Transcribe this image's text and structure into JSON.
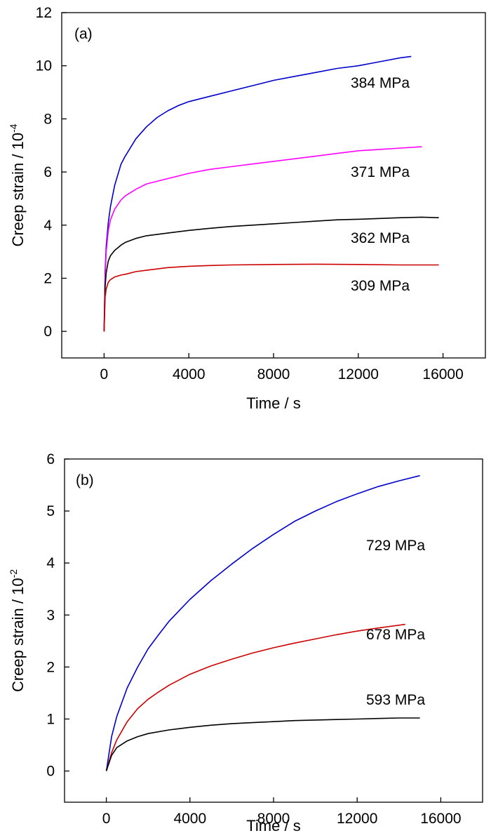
{
  "chart_data": [
    {
      "type": "line",
      "panel_label": "(a)",
      "xlabel": "Time / s",
      "ylabel": "Creep strain / 10",
      "ylabel_exponent": "-4",
      "xlim": [
        -2000,
        18000
      ],
      "ylim": [
        -1,
        12
      ],
      "xticks": [
        0,
        4000,
        8000,
        12000,
        16000
      ],
      "yticks": [
        0,
        2,
        4,
        6,
        8,
        10,
        12
      ],
      "grid": false,
      "series": [
        {
          "name": "384 MPa",
          "color": "#0000cc",
          "x": [
            0,
            50,
            100,
            200,
            300,
            500,
            800,
            1000,
            1500,
            2000,
            2500,
            3000,
            3500,
            4000,
            5000,
            6000,
            7000,
            8000,
            9000,
            10000,
            11000,
            12000,
            13000,
            14000,
            14500
          ],
          "y": [
            0,
            2.3,
            3.2,
            4.1,
            4.7,
            5.5,
            6.3,
            6.6,
            7.25,
            7.7,
            8.05,
            8.3,
            8.5,
            8.65,
            8.85,
            9.05,
            9.25,
            9.45,
            9.6,
            9.75,
            9.9,
            10.0,
            10.15,
            10.3,
            10.35
          ]
        },
        {
          "name": "371 MPa",
          "color": "#ff00ff",
          "x": [
            0,
            50,
            100,
            200,
            300,
            500,
            800,
            1000,
            1500,
            2000,
            3000,
            4000,
            5000,
            6000,
            7000,
            8000,
            9000,
            10000,
            11000,
            12000,
            13000,
            14000,
            15000
          ],
          "y": [
            0,
            2.1,
            3.0,
            3.8,
            4.2,
            4.6,
            4.95,
            5.1,
            5.35,
            5.55,
            5.75,
            5.95,
            6.1,
            6.2,
            6.3,
            6.4,
            6.5,
            6.6,
            6.7,
            6.8,
            6.85,
            6.9,
            6.95
          ]
        },
        {
          "name": "362 MPa",
          "color": "#000000",
          "x": [
            0,
            50,
            100,
            200,
            300,
            500,
            800,
            1000,
            1500,
            2000,
            3000,
            4000,
            5000,
            6000,
            7000,
            8000,
            9000,
            10000,
            11000,
            12000,
            13000,
            14000,
            15000,
            15800
          ],
          "y": [
            0,
            1.7,
            2.2,
            2.65,
            2.85,
            3.05,
            3.25,
            3.35,
            3.5,
            3.6,
            3.7,
            3.8,
            3.88,
            3.95,
            4.0,
            4.05,
            4.1,
            4.15,
            4.2,
            4.22,
            4.25,
            4.28,
            4.3,
            4.28
          ]
        },
        {
          "name": "309 MPa",
          "color": "#cc0000",
          "x": [
            0,
            50,
            100,
            200,
            300,
            500,
            800,
            1000,
            1500,
            2000,
            3000,
            4000,
            5000,
            6000,
            8000,
            10000,
            12000,
            14000,
            15800
          ],
          "y": [
            0,
            1.3,
            1.6,
            1.85,
            1.95,
            2.05,
            2.12,
            2.15,
            2.25,
            2.3,
            2.4,
            2.45,
            2.48,
            2.5,
            2.52,
            2.53,
            2.52,
            2.5,
            2.5
          ]
        }
      ]
    },
    {
      "type": "line",
      "panel_label": "(b)",
      "xlabel": "Time / s",
      "ylabel": "Creep strain / 10",
      "ylabel_exponent": "-2",
      "xlim": [
        -2000,
        18000
      ],
      "ylim": [
        -0.6,
        6
      ],
      "xticks": [
        0,
        4000,
        8000,
        12000,
        16000
      ],
      "yticks": [
        0,
        1,
        2,
        3,
        4,
        5,
        6
      ],
      "grid": false,
      "series": [
        {
          "name": "729 MPa",
          "color": "#0000cc",
          "x": [
            0,
            250,
            500,
            1000,
            1500,
            2000,
            2500,
            3000,
            4000,
            5000,
            6000,
            7000,
            8000,
            9000,
            10000,
            11000,
            12000,
            13000,
            14000,
            15000
          ],
          "y": [
            0,
            0.66,
            1.05,
            1.6,
            2.0,
            2.35,
            2.62,
            2.88,
            3.3,
            3.66,
            3.98,
            4.28,
            4.55,
            4.8,
            5.0,
            5.18,
            5.33,
            5.47,
            5.58,
            5.68
          ]
        },
        {
          "name": "678 MPa",
          "color": "#cc0000",
          "x": [
            0,
            250,
            500,
            1000,
            1500,
            2000,
            2500,
            3000,
            4000,
            5000,
            6000,
            7000,
            8000,
            9000,
            10000,
            11000,
            12000,
            13000,
            14300
          ],
          "y": [
            0,
            0.35,
            0.6,
            0.95,
            1.2,
            1.38,
            1.52,
            1.65,
            1.86,
            2.02,
            2.15,
            2.27,
            2.37,
            2.46,
            2.54,
            2.62,
            2.69,
            2.75,
            2.82
          ]
        },
        {
          "name": "593 MPa",
          "color": "#000000",
          "x": [
            0,
            250,
            500,
            1000,
            1500,
            2000,
            3000,
            4000,
            5000,
            6000,
            7000,
            8000,
            9000,
            10000,
            11000,
            12000,
            13000,
            14000,
            15000
          ],
          "y": [
            0,
            0.3,
            0.45,
            0.58,
            0.66,
            0.72,
            0.79,
            0.84,
            0.88,
            0.91,
            0.93,
            0.95,
            0.97,
            0.98,
            0.99,
            1.0,
            1.01,
            1.02,
            1.02
          ]
        }
      ]
    }
  ]
}
